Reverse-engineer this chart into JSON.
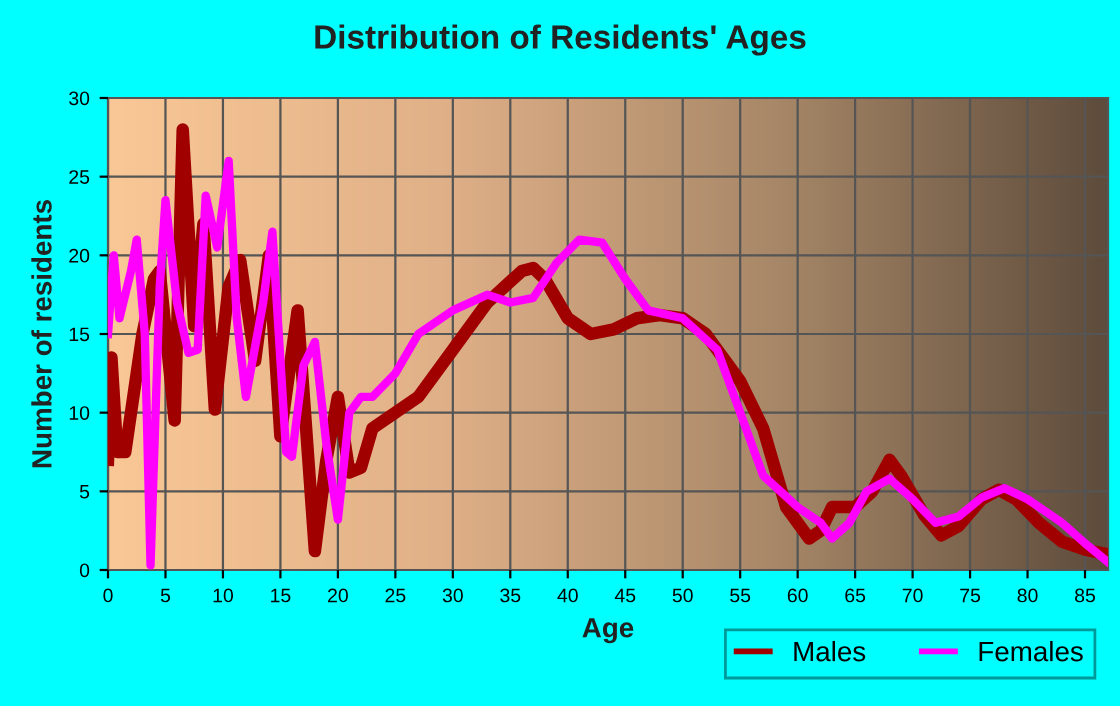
{
  "chart_data": {
    "type": "line",
    "title": "Distribution of Residents' Ages",
    "xlabel": "Age",
    "ylabel": "Number of residents",
    "xlim": [
      0,
      87
    ],
    "xticks": [
      0,
      5,
      10,
      15,
      20,
      25,
      30,
      35,
      40,
      45,
      50,
      55,
      60,
      65,
      70,
      75,
      80,
      85
    ],
    "ylim": [
      0,
      30
    ],
    "yticks": [
      0,
      5,
      10,
      15,
      20,
      25,
      30
    ],
    "grid": true,
    "legend": "bottom right",
    "marker": "none",
    "line_style": "solid",
    "series": [
      {
        "name": "Males",
        "color": "#a00000",
        "x": [
          0,
          0.3,
          0.8,
          1.5,
          3,
          4,
          4.5,
          5.8,
          6.5,
          7.5,
          8.3,
          9.3,
          10.5,
          11.5,
          12.8,
          14,
          15,
          16.5,
          18,
          19,
          20,
          21,
          22,
          23,
          25,
          27,
          30,
          33,
          36,
          37,
          38,
          40,
          42,
          44,
          46,
          48,
          50,
          52,
          55,
          57,
          59,
          61,
          62,
          63,
          65,
          66.5,
          68,
          69,
          71,
          72.5,
          74,
          76,
          77.5,
          79,
          81,
          83,
          85,
          87
        ],
        "values": [
          7,
          13.5,
          7.5,
          7.5,
          15,
          18.5,
          19,
          9.5,
          28,
          15.5,
          22,
          10.2,
          18,
          19.7,
          13.3,
          20,
          8.5,
          16.5,
          1.2,
          7,
          11,
          6.2,
          6.5,
          9,
          10,
          11,
          14,
          17,
          19,
          19.2,
          18.5,
          16,
          15,
          15.3,
          16,
          16.2,
          16,
          15,
          12,
          9,
          4,
          2,
          2.5,
          4,
          4,
          5,
          7,
          6,
          3.5,
          2.2,
          2.8,
          4.5,
          5.1,
          4.5,
          3,
          1.8,
          1.3,
          1
        ]
      },
      {
        "name": "Females",
        "color": "#ff00ff",
        "x": [
          0,
          0.5,
          1,
          2,
          2.5,
          3.2,
          3.7,
          4.5,
          5,
          6,
          7,
          7.8,
          8.5,
          9.5,
          10.5,
          11.2,
          12,
          13.5,
          14.3,
          15.5,
          16,
          17,
          18,
          19,
          20,
          21,
          22,
          23,
          25,
          27,
          30,
          33,
          35,
          37,
          39,
          41,
          43,
          45,
          47,
          50,
          53,
          55,
          57,
          60,
          62,
          63,
          64.5,
          66,
          68,
          70,
          72,
          74,
          76,
          78,
          80,
          83,
          85,
          87
        ],
        "values": [
          15,
          20,
          16,
          19,
          21,
          15,
          0.3,
          18,
          23.5,
          17,
          13.8,
          14,
          23.8,
          20.5,
          26,
          16,
          11,
          17,
          21.5,
          7.5,
          7.2,
          13,
          14.5,
          8,
          3.2,
          10,
          11,
          11,
          12.5,
          15,
          16.5,
          17.5,
          17,
          17.3,
          19.5,
          21,
          20.8,
          18.5,
          16.5,
          16,
          14,
          10,
          6,
          4,
          3,
          2,
          3,
          5,
          5.8,
          4.5,
          3,
          3.4,
          4.6,
          5.2,
          4.5,
          3,
          1.7,
          0.5
        ]
      }
    ]
  }
}
